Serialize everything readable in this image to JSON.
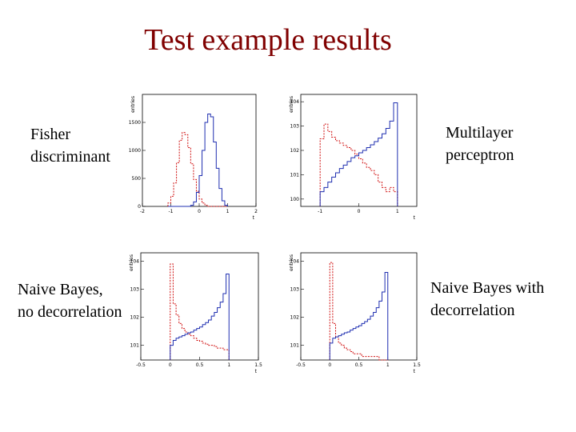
{
  "slide": {
    "title": "Test example results"
  },
  "labels": {
    "fisher": [
      "Fisher",
      "discriminant"
    ],
    "mlp": [
      "Multilayer",
      "perceptron"
    ],
    "naive_bayes": [
      "Naive Bayes,",
      "no decorrelation"
    ],
    "naive_bayes_decor": [
      "Naive Bayes with",
      "decorrelation"
    ]
  },
  "colors": {
    "signal": "#1f2fb0",
    "background": "#d01010",
    "frame": "#000000",
    "title": "#800000"
  },
  "chart_data": [
    {
      "id": "fisher",
      "type": "histogram",
      "ylabel": "entries",
      "xlabel": "t",
      "log_y": false,
      "xlim": [
        -2,
        2
      ],
      "ylim": [
        0,
        2000
      ],
      "xticks": [
        -2,
        -1,
        0,
        1,
        2
      ],
      "yticks": [
        0,
        500,
        1000,
        1500
      ],
      "bins": [
        -1.1,
        -1.0,
        -0.9,
        -0.8,
        -0.7,
        -0.6,
        -0.5,
        -0.4,
        -0.3,
        -0.2,
        -0.1,
        0.0,
        0.1,
        0.2,
        0.3,
        0.4,
        0.5,
        0.6,
        0.7,
        0.8,
        0.9,
        1.0
      ],
      "series": [
        {
          "role": "background",
          "style": "dashed",
          "values": [
            60,
            180,
            420,
            780,
            1180,
            1320,
            1280,
            1050,
            760,
            480,
            270,
            130,
            60,
            20,
            0,
            0,
            0,
            0,
            0,
            0,
            0
          ]
        },
        {
          "role": "signal",
          "style": "solid",
          "values": [
            0,
            0,
            0,
            0,
            0,
            0,
            0,
            0,
            20,
            80,
            250,
            550,
            1000,
            1500,
            1650,
            1600,
            1150,
            680,
            320,
            100,
            20
          ]
        }
      ]
    },
    {
      "id": "mlp",
      "type": "histogram",
      "ylabel": "entries",
      "xlabel": "t",
      "log_y": true,
      "xlim": [
        -1.5,
        1.5
      ],
      "ylim": [
        0.5,
        20000
      ],
      "xticks": [
        -1,
        0,
        1
      ],
      "yticks": [
        1,
        10,
        100,
        1000,
        10000
      ],
      "bins": [
        -1.0,
        -0.9,
        -0.8,
        -0.7,
        -0.6,
        -0.5,
        -0.4,
        -0.3,
        -0.2,
        -0.1,
        0.0,
        0.1,
        0.2,
        0.3,
        0.4,
        0.5,
        0.6,
        0.7,
        0.8,
        0.9,
        1.0
      ],
      "series": [
        {
          "role": "background",
          "style": "dashed",
          "values": [
            300,
            1200,
            600,
            350,
            250,
            200,
            160,
            130,
            100,
            70,
            45,
            30,
            20,
            15,
            10,
            5,
            3,
            2,
            3,
            2
          ]
        },
        {
          "role": "signal",
          "style": "solid",
          "values": [
            2,
            3,
            5,
            8,
            12,
            18,
            25,
            35,
            50,
            60,
            80,
            100,
            130,
            170,
            230,
            320,
            480,
            800,
            1600,
            9000
          ]
        }
      ]
    },
    {
      "id": "naive_bayes",
      "type": "histogram",
      "ylabel": "entries",
      "xlabel": "t",
      "log_y": true,
      "xlim": [
        -0.5,
        1.5
      ],
      "ylim": [
        3,
        20000
      ],
      "xticks": [
        -0.5,
        0,
        0.5,
        1,
        1.5
      ],
      "yticks": [
        10,
        100,
        1000,
        10000
      ],
      "bins": [
        0.0,
        0.05,
        0.1,
        0.15,
        0.2,
        0.25,
        0.3,
        0.35,
        0.4,
        0.45,
        0.5,
        0.55,
        0.6,
        0.65,
        0.7,
        0.75,
        0.8,
        0.85,
        0.9,
        0.95,
        1.0
      ],
      "series": [
        {
          "role": "background",
          "style": "dashed",
          "values": [
            8000,
            300,
            120,
            60,
            40,
            30,
            25,
            22,
            18,
            15,
            14,
            12,
            11,
            10,
            10,
            9,
            8,
            8,
            7,
            7
          ]
        },
        {
          "role": "signal",
          "style": "solid",
          "values": [
            10,
            15,
            18,
            20,
            22,
            25,
            28,
            30,
            35,
            40,
            45,
            55,
            65,
            80,
            110,
            150,
            220,
            350,
            700,
            3500
          ]
        }
      ]
    },
    {
      "id": "naive_bayes_decor",
      "type": "histogram",
      "ylabel": "entries",
      "xlabel": "t",
      "log_y": true,
      "xlim": [
        -0.5,
        1.5
      ],
      "ylim": [
        3,
        20000
      ],
      "xticks": [
        -0.5,
        0,
        0.5,
        1,
        1.5
      ],
      "yticks": [
        10,
        100,
        1000,
        10000
      ],
      "bins": [
        0.0,
        0.05,
        0.1,
        0.15,
        0.2,
        0.25,
        0.3,
        0.35,
        0.4,
        0.45,
        0.5,
        0.55,
        0.6,
        0.65,
        0.7,
        0.75,
        0.8,
        0.85,
        0.9,
        0.95,
        1.0
      ],
      "series": [
        {
          "role": "background",
          "style": "dashed",
          "values": [
            9000,
            60,
            20,
            12,
            10,
            8,
            7,
            6,
            5,
            5,
            5,
            4,
            4,
            4,
            4,
            4,
            4,
            3,
            3,
            3
          ]
        },
        {
          "role": "signal",
          "style": "solid",
          "values": [
            12,
            18,
            20,
            22,
            25,
            28,
            30,
            35,
            40,
            45,
            50,
            60,
            70,
            85,
            110,
            150,
            220,
            380,
            800,
            4000
          ]
        }
      ]
    }
  ]
}
